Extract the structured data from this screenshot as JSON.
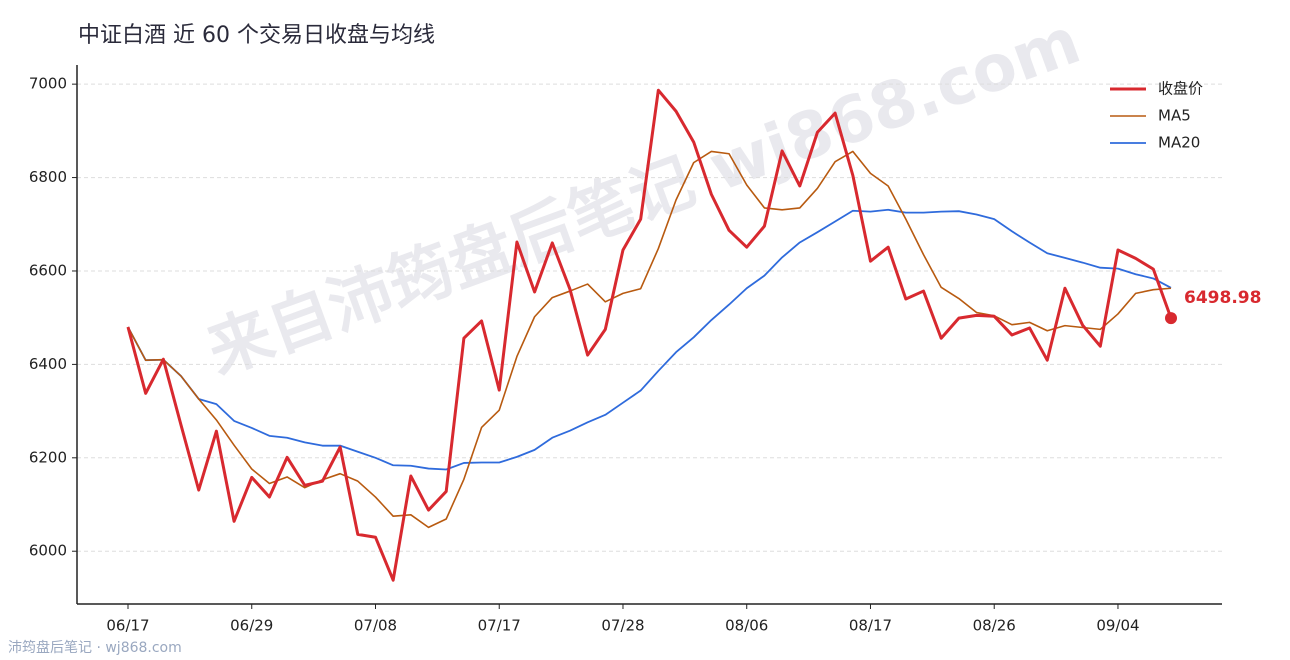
{
  "chart_data": {
    "type": "line",
    "title": "中证白酒 近 60 个交易日收盘与均线",
    "watermark": "来自沛筠盘后笔记 wj868.com",
    "footer": "沛筠盘后笔记 · wj868.com",
    "categories": [
      "06/17",
      null,
      null,
      null,
      null,
      null,
      null,
      "06/29",
      null,
      null,
      null,
      null,
      null,
      null,
      "07/08",
      null,
      null,
      null,
      null,
      null,
      null,
      "07/17",
      null,
      null,
      null,
      null,
      null,
      null,
      "07/28",
      null,
      null,
      null,
      null,
      null,
      null,
      "08/06",
      null,
      null,
      null,
      null,
      null,
      null,
      "08/17",
      null,
      null,
      null,
      null,
      null,
      null,
      "08/26",
      null,
      null,
      null,
      null,
      null,
      null,
      "09/04",
      null,
      null,
      null
    ],
    "series": [
      {
        "name": "收盘价",
        "color": "#d8292f",
        "width": 3,
        "values": [
          6480,
          6338,
          6411,
          6270,
          6131,
          6257,
          6064,
          6158,
          6116,
          6201,
          6141,
          6150,
          6223,
          6036,
          6030,
          5938,
          6161,
          6088,
          6128,
          6456,
          6493,
          6345,
          6662,
          6555,
          6660,
          6561,
          6420,
          6475,
          6645,
          6711,
          6987,
          6942,
          6876,
          6764,
          6687,
          6651,
          6696,
          6857,
          6782,
          6897,
          6938,
          6805,
          6621,
          6651,
          6540,
          6557,
          6456,
          6499,
          6505,
          6503,
          6463,
          6478,
          6409,
          6563,
          6484,
          6439,
          6645,
          6627,
          6604,
          6498.98
        ]
      },
      {
        "name": "MA5",
        "color": "#b85a10",
        "width": 1.6,
        "values": [
          6480,
          6409,
          6410,
          6375,
          6326,
          6281,
          6227,
          6176,
          6145,
          6159,
          6136,
          6153,
          6166,
          6150,
          6116,
          6075,
          6078,
          6051,
          6069,
          6154,
          6265,
          6302,
          6417,
          6502,
          6543,
          6557,
          6572,
          6534,
          6552,
          6562,
          6648,
          6752,
          6832,
          6856,
          6851,
          6784,
          6735,
          6731,
          6735,
          6777,
          6834,
          6856,
          6809,
          6782,
          6711,
          6635,
          6565,
          6541,
          6511,
          6504,
          6485,
          6490,
          6472,
          6483,
          6479,
          6475,
          6508,
          6552,
          6560,
          6563
        ]
      },
      {
        "name": "MA20",
        "color": "#2f6bdc",
        "width": 1.8,
        "values": [
          6480,
          6409,
          6410,
          6375,
          6326,
          6315,
          6279,
          6264,
          6247,
          6243,
          6233,
          6226,
          6226,
          6213,
          6200,
          6184,
          6183,
          6177,
          6175,
          6189,
          6190,
          6190,
          6202,
          6217,
          6243,
          6258,
          6276,
          6292,
          6318,
          6344,
          6386,
          6426,
          6458,
          6495,
          6528,
          6563,
          6590,
          6629,
          6661,
          6683,
          6706,
          6729,
          6727,
          6731,
          6725,
          6725,
          6727,
          6728,
          6721,
          6711,
          6685,
          6661,
          6638,
          6628,
          6618,
          6607,
          6605,
          6593,
          6584,
          6564
        ]
      }
    ],
    "ylim": [
      5887,
      7041
    ],
    "yticks": [
      6000,
      6200,
      6400,
      6600,
      6800,
      7000
    ],
    "grid": true,
    "legend": "upper-right"
  }
}
